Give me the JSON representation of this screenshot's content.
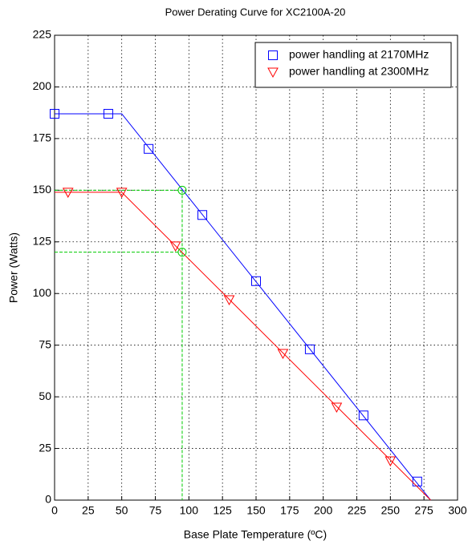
{
  "chart_data": {
    "type": "line",
    "title": "Power Derating Curve for XC2100A-20",
    "x_label": "Base Plate Temperature (ºC)",
    "y_label": "Power (Watts)",
    "xlim": [
      0,
      300
    ],
    "ylim": [
      0,
      225
    ],
    "xticks": [
      0,
      25,
      50,
      75,
      100,
      125,
      150,
      175,
      200,
      225,
      250,
      275,
      300
    ],
    "yticks": [
      0,
      25,
      50,
      75,
      100,
      125,
      150,
      175,
      200,
      225
    ],
    "grid": true,
    "legend": "upper right",
    "series": [
      {
        "name": "power handling at 2170MHz",
        "color": "#0000ff",
        "marker": "square",
        "x": [
          0,
          40,
          70,
          110,
          150,
          190,
          230,
          270
        ],
        "values": [
          187,
          187,
          170,
          138,
          106,
          73,
          41,
          9
        ],
        "line_x": [
          0,
          50,
          280
        ],
        "line_values": [
          187,
          187,
          0
        ]
      },
      {
        "name": "power handling at 2300MHz",
        "color": "#ff0000",
        "marker": "triangle-down",
        "x": [
          10,
          50,
          90,
          130,
          170,
          210,
          250
        ],
        "values": [
          149,
          149,
          123,
          97,
          71,
          45,
          19
        ],
        "line_x": [
          0,
          50,
          280
        ],
        "line_values": [
          149,
          149,
          0
        ]
      }
    ],
    "guides": {
      "color": "#00cc00",
      "x": 95,
      "y": [
        150,
        120
      ]
    }
  }
}
